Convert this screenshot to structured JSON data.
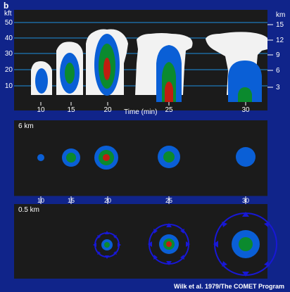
{
  "figure": {
    "panel_label": "b",
    "caption": "Wilk et al. 1979/The COMET Program"
  },
  "top_panel": {
    "left_unit": "kft",
    "left_ticks": [
      "50",
      "40",
      "30",
      "20",
      "10"
    ],
    "right_unit": "km",
    "right_ticks": [
      "15",
      "12",
      "9",
      "6",
      "3"
    ],
    "x_ticks": [
      "10",
      "15",
      "20",
      "25",
      "30"
    ],
    "x_label": "Time (min)"
  },
  "middle_panel": {
    "altitude_label": "6 km",
    "x_ticks": [
      "10",
      "15",
      "20",
      "25",
      "30"
    ]
  },
  "bottom_panel": {
    "altitude_label": "0.5 km"
  },
  "colors": {
    "background_frame": "#10248a",
    "panel": "#1b1b1b",
    "cloud": "#f2f2f2",
    "echo_low": "#0a5fd6",
    "echo_mid": "#0b8a2e",
    "echo_high": "#c01e10",
    "outflow": "#1818d6"
  }
}
